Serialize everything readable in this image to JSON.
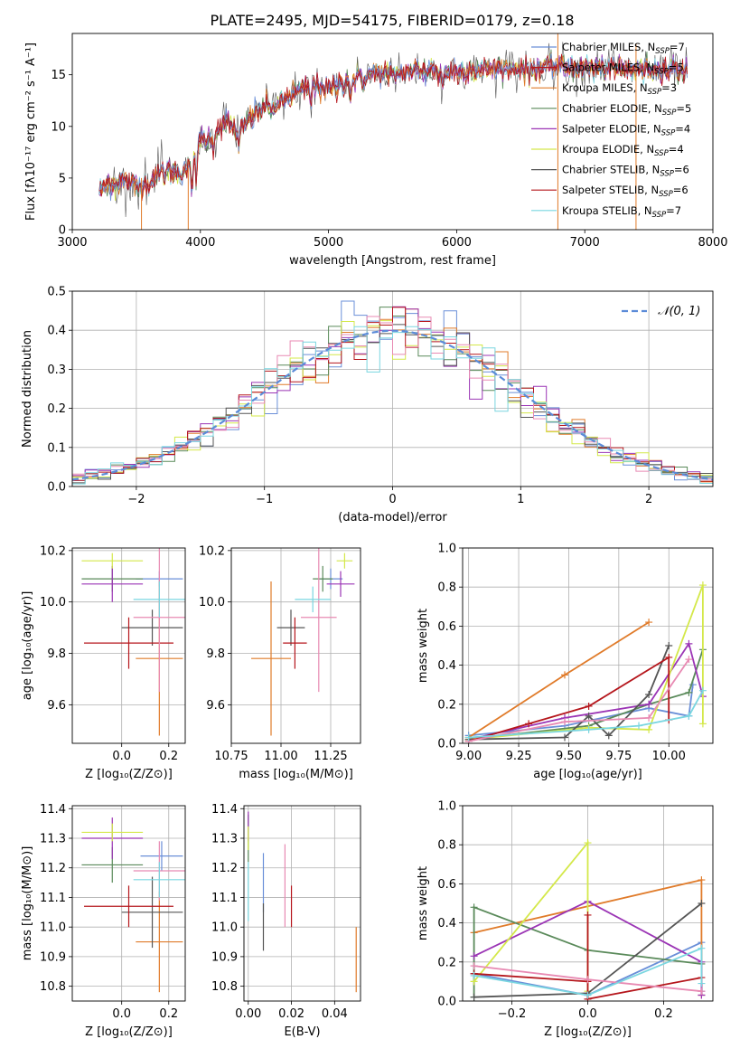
{
  "figure": {
    "title": "PLATE=2495, MJD=54175, FIBERID=0179, z=0.18"
  },
  "colors": {
    "c0": "#6a8fd8",
    "c1": "#e07b2a",
    "c2": "#5a8a5a",
    "c3": "#9b35b5",
    "c4": "#d4e84a",
    "c5": "#555555",
    "c6": "#b5161c",
    "c7": "#e88ab3",
    "c8": "#7ad6e0",
    "gauss": "#5b8bd8"
  },
  "chart_data": [
    {
      "id": "spectrum",
      "type": "line",
      "xlabel": "wavelength [Angstrom, rest frame]",
      "ylabel": "Flux [fλ10⁻¹⁷ erg cm⁻² s⁻¹ A⁻¹]",
      "xlim": [
        3000,
        8000
      ],
      "ylim": [
        0,
        19
      ],
      "xticks": [
        3000,
        4000,
        5000,
        6000,
        7000,
        8000
      ],
      "yticks": [
        0,
        5,
        10,
        15
      ],
      "grid": false,
      "legend": "top-right",
      "series": [
        {
          "name": "Chabrier MILES, N",
          "sub": "SSP",
          "eq": "=7",
          "color": "#6a8fd8"
        },
        {
          "name": "Salpeter MILES, N",
          "sub": "SSP",
          "eq": "=5",
          "color": "#b5161c"
        },
        {
          "name": "Kroupa MILES, N",
          "sub": "SSP",
          "eq": "=3",
          "color": "#e07b2a"
        },
        {
          "name": "Chabrier ELODIE, N",
          "sub": "SSP",
          "eq": "=5",
          "color": "#5a8a5a"
        },
        {
          "name": "Salpeter ELODIE, N",
          "sub": "SSP",
          "eq": "=4",
          "color": "#9b35b5"
        },
        {
          "name": "Kroupa ELODIE, N",
          "sub": "SSP",
          "eq": "=4",
          "color": "#d4e84a"
        },
        {
          "name": "Chabrier STELIB, N",
          "sub": "SSP",
          "eq": "=6",
          "color": "#555555"
        },
        {
          "name": "Salpeter STELIB, N",
          "sub": "SSP",
          "eq": "=6",
          "color": "#b5161c"
        },
        {
          "name": "Kroupa STELIB, N",
          "sub": "SSP",
          "eq": "=7",
          "color": "#7ad6e0"
        }
      ],
      "continuum": [
        [
          3200,
          3.5
        ],
        [
          3300,
          4.5
        ],
        [
          3400,
          4.7
        ],
        [
          3500,
          4.2
        ],
        [
          3600,
          4.6
        ],
        [
          3700,
          5.6
        ],
        [
          3800,
          5.5
        ],
        [
          3900,
          5.8
        ],
        [
          4000,
          8.5
        ],
        [
          4100,
          9.2
        ],
        [
          4200,
          10.4
        ],
        [
          4300,
          9.4
        ],
        [
          4400,
          11
        ],
        [
          4500,
          11.8
        ],
        [
          4600,
          12
        ],
        [
          4700,
          13
        ],
        [
          4800,
          13.5
        ],
        [
          4900,
          14
        ],
        [
          5000,
          13.6
        ],
        [
          5100,
          14.2
        ],
        [
          5200,
          14.6
        ],
        [
          5300,
          15
        ],
        [
          5400,
          15.2
        ],
        [
          5500,
          15
        ],
        [
          5600,
          15.2
        ],
        [
          5700,
          15.4
        ],
        [
          5800,
          15.5
        ],
        [
          5900,
          15.3
        ],
        [
          6000,
          15.4
        ],
        [
          6200,
          15.5
        ],
        [
          6400,
          15.6
        ],
        [
          6600,
          15.8
        ],
        [
          6800,
          15.8
        ],
        [
          7000,
          15.7
        ],
        [
          7200,
          15.6
        ],
        [
          7400,
          15.5
        ],
        [
          7600,
          15.6
        ],
        [
          7800,
          15.5
        ]
      ]
    },
    {
      "id": "residuals",
      "type": "line",
      "xlabel": "(data-model)/error",
      "ylabel": "Normed distribution",
      "xlim": [
        -2.5,
        2.5
      ],
      "ylim": [
        0,
        0.5
      ],
      "xticks": [
        -2,
        -1,
        0,
        1,
        2
      ],
      "yticks": [
        0.0,
        0.1,
        0.2,
        0.3,
        0.4,
        0.5
      ],
      "grid": true,
      "legend": "top-right",
      "legend_label": "𝒩(0, 1)",
      "bin_width": 0.1
    },
    {
      "id": "age-vs-Z",
      "type": "scatter",
      "xlabel": "Z [log₁₀(Z/Z⊙)]",
      "ylabel": "age  [log₁₀(age/yr)]",
      "xlim": [
        -0.21,
        0.27
      ],
      "ylim": [
        9.45,
        10.21
      ],
      "xticks": [
        0.0,
        0.2
      ],
      "yticks": [
        9.6,
        9.8,
        10.0,
        10.2
      ],
      "grid": true,
      "points": [
        {
          "x": 0.16,
          "y": 10.09,
          "xerr": 0.1,
          "yerr": 0.03,
          "color": "#6a8fd8"
        },
        {
          "x": 0.16,
          "y": 9.78,
          "xerr": 0.1,
          "yerr": 0.3,
          "color": "#e07b2a"
        },
        {
          "x": -0.04,
          "y": 10.09,
          "xerr": 0.13,
          "yerr": 0.05,
          "color": "#5a8a5a"
        },
        {
          "x": -0.04,
          "y": 10.07,
          "xerr": 0.13,
          "yerr": 0.07,
          "color": "#9b35b5"
        },
        {
          "x": -0.04,
          "y": 10.16,
          "xerr": 0.13,
          "yerr": 0.03,
          "color": "#d4e84a"
        },
        {
          "x": 0.13,
          "y": 9.9,
          "xerr": 0.13,
          "yerr": 0.07,
          "color": "#555555"
        },
        {
          "x": 0.03,
          "y": 9.84,
          "xerr": 0.19,
          "yerr": 0.1,
          "color": "#b5161c"
        },
        {
          "x": 0.16,
          "y": 9.94,
          "xerr": 0.11,
          "yerr": 0.29,
          "color": "#e88ab3"
        },
        {
          "x": 0.16,
          "y": 10.01,
          "xerr": 0.11,
          "yerr": 0.07,
          "color": "#7ad6e0"
        }
      ]
    },
    {
      "id": "age-vs-mass",
      "type": "scatter",
      "xlabel": "mass [log₁₀(M/M⊙)]",
      "ylabel": "",
      "xlim": [
        10.75,
        11.4
      ],
      "ylim": [
        9.45,
        10.21
      ],
      "xticks": [
        10.75,
        11.0,
        11.25
      ],
      "yticks": [
        9.6,
        9.8,
        10.0,
        10.2
      ],
      "grid": true,
      "points": [
        {
          "x": 11.25,
          "y": 10.09,
          "xerr": 0.06,
          "yerr": 0.04,
          "color": "#6a8fd8"
        },
        {
          "x": 10.95,
          "y": 9.78,
          "xerr": 0.1,
          "yerr": 0.3,
          "color": "#e07b2a"
        },
        {
          "x": 11.21,
          "y": 10.09,
          "xerr": 0.05,
          "yerr": 0.05,
          "color": "#5a8a5a"
        },
        {
          "x": 11.3,
          "y": 10.07,
          "xerr": 0.07,
          "yerr": 0.05,
          "color": "#9b35b5"
        },
        {
          "x": 11.32,
          "y": 10.16,
          "xerr": 0.04,
          "yerr": 0.03,
          "color": "#d4e84a"
        },
        {
          "x": 11.05,
          "y": 9.9,
          "xerr": 0.07,
          "yerr": 0.07,
          "color": "#555555"
        },
        {
          "x": 11.07,
          "y": 9.84,
          "xerr": 0.06,
          "yerr": 0.1,
          "color": "#b5161c"
        },
        {
          "x": 11.19,
          "y": 9.94,
          "xerr": 0.09,
          "yerr": 0.29,
          "color": "#e88ab3"
        },
        {
          "x": 11.16,
          "y": 10.01,
          "xerr": 0.09,
          "yerr": 0.05,
          "color": "#7ad6e0"
        }
      ]
    },
    {
      "id": "weight-vs-age",
      "type": "line",
      "xlabel": "age  [log₁₀(age/yr)]",
      "ylabel": "mass weight",
      "xlim": [
        8.97,
        10.22
      ],
      "ylim": [
        0,
        1
      ],
      "xticks": [
        9.0,
        9.25,
        9.5,
        9.75,
        10.0
      ],
      "xticklabels": [
        "9.00",
        "9.25",
        "9.50",
        "9.75",
        "10.00"
      ],
      "yticks": [
        0.0,
        0.2,
        0.4,
        0.6,
        0.8,
        1.0
      ],
      "grid": true,
      "series": [
        {
          "color": "#6a8fd8",
          "x": [
            9.0,
            9.48,
            9.9,
            10.1,
            10.12
          ],
          "y": [
            0.04,
            0.09,
            0.18,
            0.14,
            0.3
          ]
        },
        {
          "color": "#e07b2a",
          "x": [
            9.0,
            9.48,
            9.9
          ],
          "y": [
            0.03,
            0.35,
            0.62
          ]
        },
        {
          "color": "#5a8a5a",
          "x": [
            9.0,
            9.6,
            9.9,
            10.1,
            10.17
          ],
          "y": [
            0.02,
            0.09,
            0.2,
            0.26,
            0.48
          ]
        },
        {
          "color": "#9b35b5",
          "x": [
            9.0,
            9.48,
            9.9,
            10.1,
            10.17
          ],
          "y": [
            0.02,
            0.13,
            0.2,
            0.51,
            0.24
          ]
        },
        {
          "color": "#d4e84a",
          "x": [
            9.0,
            9.6,
            9.9,
            10.17,
            10.17
          ],
          "y": [
            0.02,
            0.08,
            0.07,
            0.81,
            0.1
          ]
        },
        {
          "color": "#555555",
          "x": [
            9.0,
            9.48,
            9.6,
            9.7,
            9.9,
            10.0
          ],
          "y": [
            0.02,
            0.03,
            0.14,
            0.04,
            0.25,
            0.5
          ]
        },
        {
          "color": "#b5161c",
          "x": [
            9.0,
            9.3,
            9.6,
            10.0,
            10.0
          ],
          "y": [
            0.01,
            0.1,
            0.19,
            0.44,
            0.12
          ]
        },
        {
          "color": "#e88ab3",
          "x": [
            9.0,
            9.48,
            9.9,
            10.1
          ],
          "y": [
            0.01,
            0.11,
            0.13,
            0.43
          ]
        },
        {
          "color": "#7ad6e0",
          "x": [
            9.0,
            9.6,
            9.85,
            10.1,
            10.17
          ],
          "y": [
            0.03,
            0.07,
            0.09,
            0.14,
            0.27
          ]
        }
      ]
    },
    {
      "id": "mass-vs-Z",
      "type": "scatter",
      "xlabel": "Z [log₁₀(Z/Z⊙)]",
      "ylabel": "mass [log₁₀(M/M⊙)]",
      "xlim": [
        -0.21,
        0.27
      ],
      "ylim": [
        10.75,
        11.41
      ],
      "xticks": [
        0.0,
        0.2
      ],
      "yticks": [
        10.8,
        10.9,
        11.0,
        11.1,
        11.2,
        11.3,
        11.4
      ],
      "grid": true,
      "points": [
        {
          "x": 0.17,
          "y": 11.24,
          "xerr": 0.09,
          "yerr": 0.05,
          "color": "#6a8fd8"
        },
        {
          "x": 0.16,
          "y": 10.95,
          "xerr": 0.1,
          "yerr": 0.17,
          "color": "#e07b2a"
        },
        {
          "x": -0.04,
          "y": 11.21,
          "xerr": 0.13,
          "yerr": 0.06,
          "color": "#5a8a5a"
        },
        {
          "x": -0.04,
          "y": 11.3,
          "xerr": 0.13,
          "yerr": 0.07,
          "color": "#9b35b5"
        },
        {
          "x": -0.04,
          "y": 11.32,
          "xerr": 0.13,
          "yerr": 0.03,
          "color": "#d4e84a"
        },
        {
          "x": 0.13,
          "y": 11.05,
          "xerr": 0.13,
          "yerr": 0.12,
          "color": "#555555"
        },
        {
          "x": 0.03,
          "y": 11.07,
          "xerr": 0.19,
          "yerr": 0.07,
          "color": "#b5161c"
        },
        {
          "x": 0.16,
          "y": 11.19,
          "xerr": 0.11,
          "yerr": 0.1,
          "color": "#e88ab3"
        },
        {
          "x": 0.16,
          "y": 11.16,
          "xerr": 0.11,
          "yerr": 0.06,
          "color": "#7ad6e0"
        }
      ]
    },
    {
      "id": "mass-vs-EBV",
      "type": "scatter",
      "xlabel": "E(B-V)",
      "ylabel": "",
      "xlim": [
        -0.002,
        0.052
      ],
      "ylim": [
        10.75,
        11.41
      ],
      "xticks": [
        0.0,
        0.02,
        0.04
      ],
      "xticklabels": [
        "0.00",
        "0.02",
        "0.04"
      ],
      "yticks": [
        10.8,
        10.9,
        11.0,
        11.1,
        11.2,
        11.3,
        11.4
      ],
      "grid": true,
      "points": [
        {
          "x": 0.007,
          "y": 11.15,
          "xerr": 0,
          "yerr": 0.1,
          "color": "#6a8fd8"
        },
        {
          "x": 0.05,
          "y": 10.89,
          "xerr": 0,
          "yerr": 0.11,
          "color": "#e07b2a"
        },
        {
          "x": 0.0,
          "y": 11.3,
          "xerr": 0,
          "yerr": 0.08,
          "color": "#5a8a5a"
        },
        {
          "x": 0.0,
          "y": 11.34,
          "xerr": 0,
          "yerr": 0.05,
          "color": "#9b35b5"
        },
        {
          "x": 0.0,
          "y": 11.3,
          "xerr": 0,
          "yerr": 0.04,
          "color": "#d4e84a"
        },
        {
          "x": 0.007,
          "y": 11.0,
          "xerr": 0,
          "yerr": 0.08,
          "color": "#555555"
        },
        {
          "x": 0.02,
          "y": 11.07,
          "xerr": 0,
          "yerr": 0.07,
          "color": "#b5161c"
        },
        {
          "x": 0.017,
          "y": 11.14,
          "xerr": 0,
          "yerr": 0.14,
          "color": "#e88ab3"
        },
        {
          "x": 0.0,
          "y": 11.12,
          "xerr": 0,
          "yerr": 0.1,
          "color": "#7ad6e0"
        }
      ]
    },
    {
      "id": "weight-vs-Z",
      "type": "line",
      "xlabel": "Z [log₁₀(Z/Z⊙)]",
      "ylabel": "mass weight",
      "xlim": [
        -0.33,
        0.33
      ],
      "ylim": [
        0,
        1
      ],
      "xticks": [
        -0.2,
        0.0,
        0.2
      ],
      "xticklabels": [
        "−0.2",
        "0.0",
        "0.2"
      ],
      "yticks": [
        0.0,
        0.2,
        0.4,
        0.6,
        0.8,
        1.0
      ],
      "grid": true,
      "series": [
        {
          "color": "#6a8fd8",
          "x": [
            -0.3,
            0.0,
            0.3,
            0.3
          ],
          "y": [
            0.14,
            0.03,
            0.3,
            0.05
          ]
        },
        {
          "color": "#e07b2a",
          "x": [
            -0.3,
            0.3,
            0.3
          ],
          "y": [
            0.35,
            0.62,
            0.03
          ]
        },
        {
          "color": "#5a8a5a",
          "x": [
            -0.3,
            -0.3,
            0.0,
            0.3
          ],
          "y": [
            0.02,
            0.48,
            0.26,
            0.19
          ]
        },
        {
          "color": "#9b35b5",
          "x": [
            -0.3,
            0.0,
            0.3,
            0.3
          ],
          "y": [
            0.23,
            0.51,
            0.2,
            0.03
          ]
        },
        {
          "color": "#d4e84a",
          "x": [
            -0.3,
            0.0,
            0.0
          ],
          "y": [
            0.1,
            0.81,
            0.05
          ]
        },
        {
          "color": "#555555",
          "x": [
            -0.3,
            0.0,
            0.3
          ],
          "y": [
            0.02,
            0.04,
            0.5
          ]
        },
        {
          "color": "#b5161c",
          "x": [
            -0.3,
            0.0,
            0.0,
            0.0,
            0.3
          ],
          "y": [
            0.14,
            0.1,
            0.44,
            0.01,
            0.12
          ]
        },
        {
          "color": "#e88ab3",
          "x": [
            -0.3,
            0.0,
            0.3
          ],
          "y": [
            0.18,
            0.11,
            0.05
          ]
        },
        {
          "color": "#7ad6e0",
          "x": [
            -0.3,
            0.0,
            0.3,
            0.3
          ],
          "y": [
            0.13,
            0.03,
            0.27,
            0.09
          ]
        }
      ]
    }
  ]
}
